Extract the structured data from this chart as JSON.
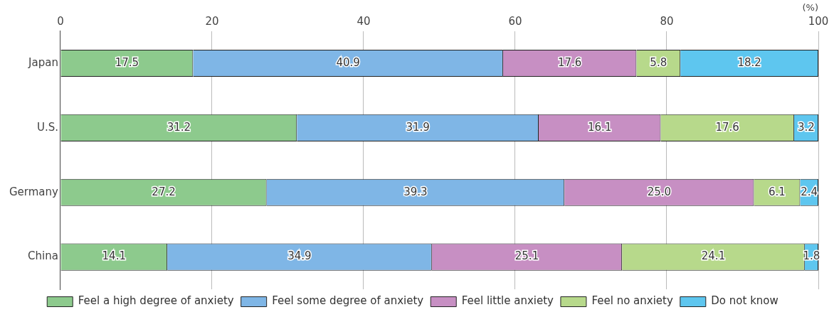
{
  "chart_data": {
    "type": "bar",
    "orientation": "horizontal",
    "stacked": true,
    "xlabel": "(%)",
    "categories": [
      "Japan",
      "U.S.",
      "Germany",
      "China"
    ],
    "series": [
      {
        "name": "Feel a high degree of anxiety",
        "color": "#8dca8d",
        "values": [
          17.5,
          31.2,
          27.2,
          14.1
        ]
      },
      {
        "name": "Feel some degree of anxiety",
        "color": "#7fb6e6",
        "values": [
          40.9,
          31.9,
          39.3,
          34.9
        ]
      },
      {
        "name": "Feel little anxiety",
        "color": "#c78fc3",
        "values": [
          17.6,
          16.1,
          25.0,
          25.1
        ],
        "value_labels": [
          "17.6",
          "16.1",
          "25.0",
          "25.1"
        ]
      },
      {
        "name": "Feel no anxiety",
        "color": "#b7d98b",
        "values": [
          5.8,
          17.6,
          6.1,
          24.1
        ]
      },
      {
        "name": "Do not know",
        "color": "#5ec6ef",
        "values": [
          18.2,
          3.2,
          2.4,
          1.8
        ]
      }
    ],
    "xlim": [
      0,
      100
    ],
    "xticks": [
      0,
      20,
      40,
      60,
      80,
      100
    ],
    "grid": "x",
    "legend": "bottom",
    "data_labels": true
  }
}
